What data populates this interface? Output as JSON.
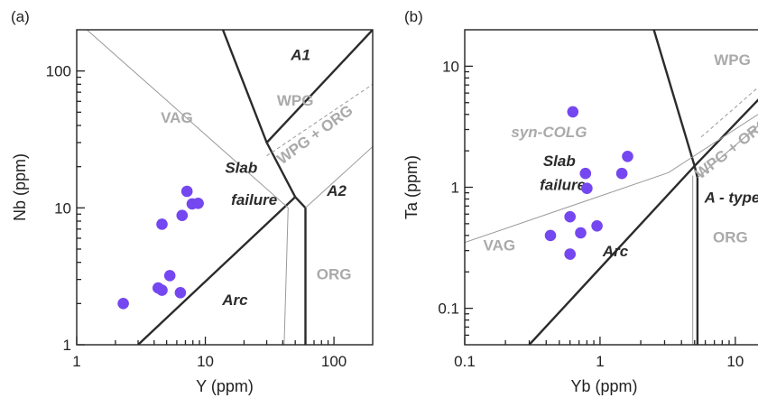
{
  "chart_data": [
    {
      "type": "scatter",
      "panel_label": "(a)",
      "xlabel": "Y (ppm)",
      "ylabel": "Nb (ppm)",
      "xscale": "log",
      "yscale": "log",
      "xlim": [
        1,
        200
      ],
      "ylim": [
        1,
        200
      ],
      "xticks": [
        {
          "v": 1,
          "label": "1"
        },
        {
          "v": 10,
          "label": "10"
        },
        {
          "v": 100,
          "label": "100"
        }
      ],
      "yticks": [
        {
          "v": 1,
          "label": "1"
        },
        {
          "v": 10,
          "label": "10"
        },
        {
          "v": 100,
          "label": "100"
        }
      ],
      "grid": false,
      "field_labels": [
        {
          "text": "A1",
          "x": 55,
          "y": 120,
          "style": "dark"
        },
        {
          "text": "WPG",
          "x": 50,
          "y": 56,
          "style": "gray"
        },
        {
          "text": "VAG",
          "x": 6,
          "y": 42,
          "style": "gray"
        },
        {
          "text": "WPG + ORG",
          "x": 75,
          "y": 32,
          "style": "gray-rot"
        },
        {
          "text": "Slab",
          "x": 19,
          "y": 18,
          "style": "dark"
        },
        {
          "text": "failure",
          "x": 24,
          "y": 10.5,
          "style": "dark"
        },
        {
          "text": "A2",
          "x": 105,
          "y": 12.2,
          "style": "dark"
        },
        {
          "text": "ORG",
          "x": 100,
          "y": 3.0,
          "style": "gray"
        },
        {
          "text": "Arc",
          "x": 17,
          "y": 1.95,
          "style": "dark"
        }
      ],
      "boundaries": [
        {
          "style": "thick",
          "points": [
            [
              3,
              1
            ],
            [
              50,
              12
            ]
          ]
        },
        {
          "style": "thick",
          "points": [
            [
              50,
              12
            ],
            [
              60,
              10
            ],
            [
              60,
              1
            ]
          ]
        },
        {
          "style": "thick",
          "points": [
            [
              50,
              12
            ],
            [
              30,
              30
            ],
            [
              200,
              200
            ]
          ]
        },
        {
          "style": "thick",
          "points": [
            [
              30,
              30
            ],
            [
              13.7,
              200
            ]
          ]
        },
        {
          "style": "thin",
          "points": [
            [
              1.2,
              200
            ],
            [
              44,
              10
            ],
            [
              41,
              1
            ]
          ]
        },
        {
          "style": "thin",
          "points": [
            [
              60,
              10
            ],
            [
              200,
              28
            ]
          ]
        },
        {
          "style": "dash",
          "points": [
            [
              30,
              24
            ],
            [
              200,
              80
            ]
          ]
        }
      ],
      "series": [
        {
          "points": [
            {
              "x": 2.3,
              "y": 2.0
            },
            {
              "x": 4.3,
              "y": 2.6
            },
            {
              "x": 4.6,
              "y": 2.5
            },
            {
              "x": 5.3,
              "y": 3.2
            },
            {
              "x": 6.4,
              "y": 2.4
            },
            {
              "x": 4.6,
              "y": 7.6
            },
            {
              "x": 6.6,
              "y": 8.8
            },
            {
              "x": 7.2,
              "y": 13.2
            },
            {
              "x": 7.9,
              "y": 10.7
            },
            {
              "x": 8.8,
              "y": 10.8
            }
          ]
        }
      ]
    },
    {
      "type": "scatter",
      "panel_label": "(b)",
      "xlabel": "Yb (ppm)",
      "ylabel": "Ta (ppm)",
      "xscale": "log",
      "yscale": "log",
      "xlim": [
        0.1,
        20
      ],
      "ylim": [
        0.05,
        20
      ],
      "xticks": [
        {
          "v": 0.1,
          "label": "0.1"
        },
        {
          "v": 1,
          "label": "1"
        },
        {
          "v": 10,
          "label": "10"
        }
      ],
      "yticks": [
        {
          "v": 0.1,
          "label": "0.1"
        },
        {
          "v": 1,
          "label": "1"
        },
        {
          "v": 10,
          "label": "10"
        }
      ],
      "grid": false,
      "field_labels": [
        {
          "text": "WPG",
          "x": 9.5,
          "y": 10.2,
          "style": "gray"
        },
        {
          "text": "syn-COLG",
          "x": 0.42,
          "y": 2.6,
          "style": "gray-it"
        },
        {
          "text": "WPG + ORG",
          "x": 10,
          "y": 1.95,
          "style": "gray-rot"
        },
        {
          "text": "Slab",
          "x": 0.5,
          "y": 1.5,
          "style": "dark"
        },
        {
          "text": "failure",
          "x": 0.53,
          "y": 0.95,
          "style": "dark"
        },
        {
          "text": "A - type",
          "x": 9.5,
          "y": 0.75,
          "style": "dark"
        },
        {
          "text": "VAG",
          "x": 0.18,
          "y": 0.3,
          "style": "gray"
        },
        {
          "text": "ORG",
          "x": 9.2,
          "y": 0.35,
          "style": "gray"
        },
        {
          "text": "Arc",
          "x": 1.3,
          "y": 0.27,
          "style": "dark"
        }
      ],
      "boundaries": [
        {
          "style": "thick",
          "points": [
            [
              0.3,
              0.05
            ],
            [
              5,
              1.5
            ]
          ]
        },
        {
          "style": "thick",
          "points": [
            [
              5,
              1.5
            ],
            [
              20,
              7.5
            ]
          ]
        },
        {
          "style": "thick",
          "points": [
            [
              5,
              1.5
            ],
            [
              2.5,
              20
            ]
          ]
        },
        {
          "style": "thick",
          "points": [
            [
              5,
              1.5
            ],
            [
              5.25,
              1.2
            ],
            [
              5.25,
              0.05
            ]
          ]
        },
        {
          "style": "thin",
          "points": [
            [
              0.1,
              0.35
            ],
            [
              3.2,
              1.32
            ],
            [
              20,
              5
            ]
          ]
        },
        {
          "style": "thin",
          "points": [
            [
              4.85,
              0.05
            ],
            [
              4.85,
              1.25
            ]
          ]
        },
        {
          "style": "thin",
          "points": [
            [
              5.25,
              1.2
            ],
            [
              20,
              4.3
            ]
          ]
        },
        {
          "style": "dash",
          "points": [
            [
              5.6,
              2.6
            ],
            [
              20,
              9
            ]
          ]
        }
      ],
      "series": [
        {
          "points": [
            {
              "x": 0.63,
              "y": 4.2
            },
            {
              "x": 1.6,
              "y": 1.8
            },
            {
              "x": 0.78,
              "y": 1.3
            },
            {
              "x": 1.45,
              "y": 1.3
            },
            {
              "x": 0.8,
              "y": 0.98
            },
            {
              "x": 0.6,
              "y": 0.57
            },
            {
              "x": 0.72,
              "y": 0.42
            },
            {
              "x": 0.95,
              "y": 0.48
            },
            {
              "x": 0.43,
              "y": 0.4
            },
            {
              "x": 0.6,
              "y": 0.28
            }
          ]
        }
      ]
    }
  ]
}
